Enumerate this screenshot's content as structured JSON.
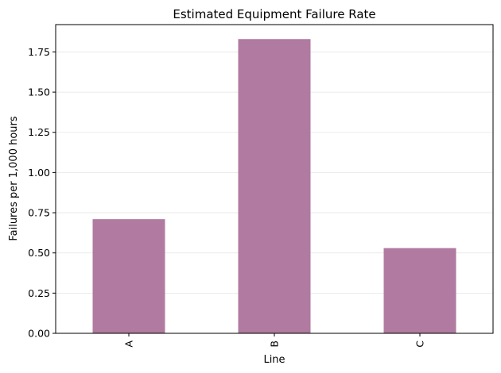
{
  "chart_data": {
    "type": "bar",
    "title": "Estimated Equipment Failure Rate",
    "xlabel": "Line",
    "ylabel": "Failures per 1,000 hours",
    "categories": [
      "A",
      "B",
      "C"
    ],
    "values": [
      0.71,
      1.83,
      0.53
    ],
    "ylim": [
      0,
      1.92
    ],
    "yticks": [
      0.0,
      0.25,
      0.5,
      0.75,
      1.0,
      1.25,
      1.5,
      1.75
    ],
    "ytick_labels": [
      "0.00",
      "0.25",
      "0.50",
      "0.75",
      "1.00",
      "1.25",
      "1.50",
      "1.75"
    ],
    "grid": "y-axis, light gray",
    "legend": "none",
    "bar_color": "#b07aa1",
    "bar_opacity": 1
  }
}
